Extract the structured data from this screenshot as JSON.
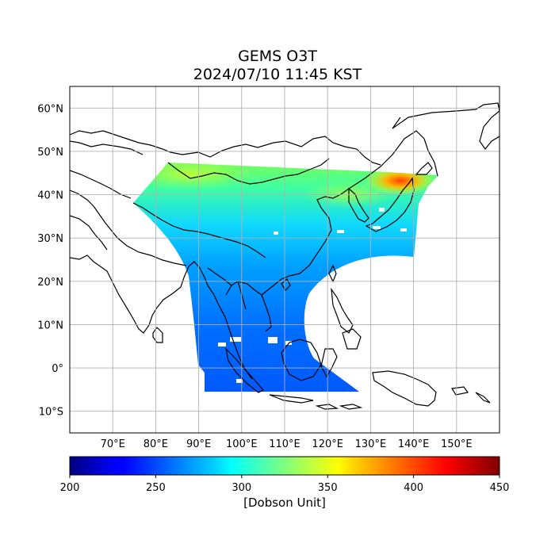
{
  "title": "GEMS O3T",
  "subtitle": "2024/07/10 11:45 KST",
  "map": {
    "lon_range": [
      60,
      160
    ],
    "lat_range": [
      -15,
      65
    ],
    "lon_ticks": [
      70,
      80,
      90,
      100,
      110,
      120,
      130,
      140,
      150
    ],
    "lon_tick_labels": [
      "70°E",
      "80°E",
      "90°E",
      "100°E",
      "110°E",
      "120°E",
      "130°E",
      "140°E",
      "150°E"
    ],
    "lat_ticks": [
      60,
      50,
      40,
      30,
      20,
      10,
      0,
      -10
    ],
    "lat_tick_labels": [
      "60°N",
      "50°N",
      "40°N",
      "30°N",
      "20°N",
      "10°N",
      "0°",
      "10°S"
    ],
    "grid": true
  },
  "colorbar": {
    "colormap": "jet",
    "range": [
      200,
      450
    ],
    "ticks": [
      200,
      250,
      300,
      350,
      400,
      450
    ],
    "tick_labels": [
      "200",
      "250",
      "300",
      "350",
      "400",
      "450"
    ],
    "label": "[Dobson Unit]"
  },
  "chart_data": {
    "type": "heatmap",
    "variable": "total ozone",
    "regions": [
      {
        "lon": 90,
        "lat": 44,
        "value": 345
      },
      {
        "lon": 105,
        "lat": 42,
        "value": 335
      },
      {
        "lon": 130,
        "lat": 43,
        "value": 360
      },
      {
        "lon": 137,
        "lat": 44,
        "value": 385
      },
      {
        "lon": 100,
        "lat": 33,
        "value": 310
      },
      {
        "lon": 118,
        "lat": 32,
        "value": 325
      },
      {
        "lon": 100,
        "lat": 15,
        "value": 280
      },
      {
        "lon": 110,
        "lat": 5,
        "value": 270
      },
      {
        "lon": 100,
        "lat": -3,
        "value": 265
      }
    ],
    "colors": {
      "low": "#00007f",
      "mid": "#7fff7f",
      "high": "#7f0000"
    }
  }
}
